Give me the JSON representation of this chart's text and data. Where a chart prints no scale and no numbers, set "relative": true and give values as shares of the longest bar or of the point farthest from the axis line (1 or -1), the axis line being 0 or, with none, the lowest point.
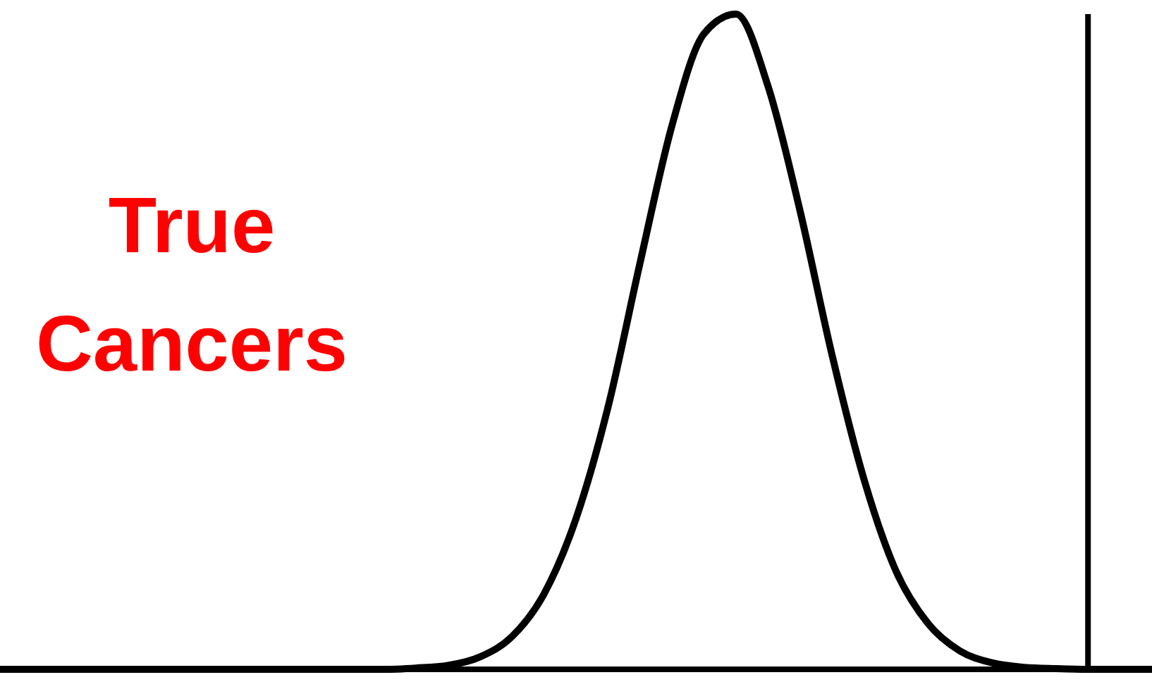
{
  "chart_data": {
    "type": "line",
    "relative": true,
    "categories": [
      null,
      null,
      null,
      null,
      null,
      null,
      null,
      null,
      null,
      null,
      null,
      null,
      null,
      null,
      null,
      null,
      null,
      null,
      null,
      null,
      null,
      null,
      null,
      null,
      null,
      null,
      null,
      null,
      null,
      null,
      null,
      null,
      null,
      null,
      null,
      null,
      null
    ],
    "series": [
      {
        "color": "#000000",
        "values": [
          0,
          0,
          0,
          0,
          0,
          0,
          0,
          0,
          0,
          0,
          0,
          0,
          0,
          0.002,
          0.006,
          0.019,
          0.05,
          0.115,
          0.23,
          0.4,
          0.62,
          0.83,
          0.97,
          1,
          0.89,
          0.7,
          0.48,
          0.29,
          0.15,
          0.07,
          0.028,
          0.01,
          0.003,
          0.001,
          0,
          0,
          0
        ]
      }
    ],
    "annotations": [
      "True Cancers"
    ]
  }
}
